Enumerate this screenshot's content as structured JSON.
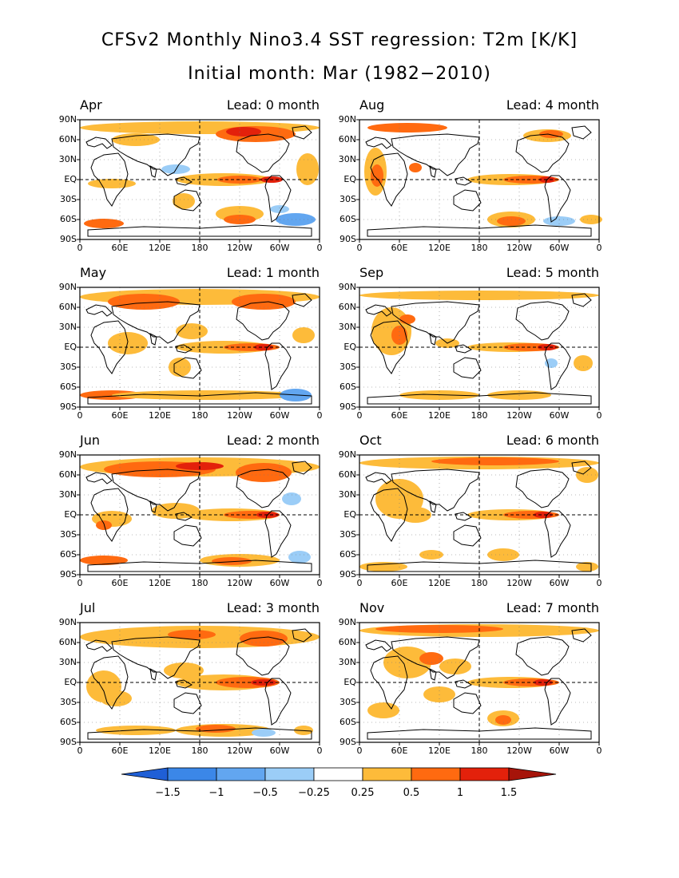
{
  "title_line1": "CFSv2 Monthly Nino3.4 SST regression: T2m [K/K]",
  "title_line2": "Initial month: Mar (1982−2010)",
  "lat_labels": [
    "90N",
    "60N",
    "30N",
    "EQ",
    "30S",
    "60S",
    "90S"
  ],
  "lon_labels": [
    "0",
    "60E",
    "120E",
    "180",
    "120W",
    "60W",
    "0"
  ],
  "panels": [
    {
      "month": "Apr",
      "lead": "Lead: 0 month"
    },
    {
      "month": "Aug",
      "lead": "Lead: 4 month"
    },
    {
      "month": "May",
      "lead": "Lead: 1 month"
    },
    {
      "month": "Sep",
      "lead": "Lead: 5 month"
    },
    {
      "month": "Jun",
      "lead": "Lead: 2 month"
    },
    {
      "month": "Oct",
      "lead": "Lead: 6 month"
    },
    {
      "month": "Jul",
      "lead": "Lead: 3 month"
    },
    {
      "month": "Nov",
      "lead": "Lead: 7 month"
    }
  ],
  "colorbar": {
    "levels": [
      "−1.5",
      "−1",
      "−0.5",
      "−0.25",
      "0.25",
      "0.5",
      "1",
      "1.5"
    ],
    "colors": [
      "#1f5fd6",
      "#3b87e8",
      "#62a6f0",
      "#9bcdf7",
      "#ffffff",
      "#fdbb3a",
      "#ff6a10",
      "#e3210b",
      "#a6140a"
    ]
  }
}
